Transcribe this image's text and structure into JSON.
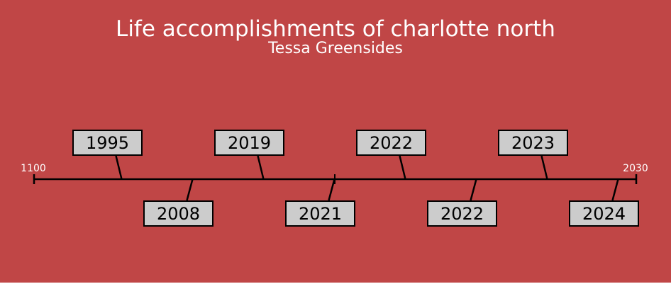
{
  "title": "Life accomplishments of charlotte north",
  "subtitle": "Tessa Greensides",
  "colors": {
    "background": "#c04646",
    "box_fill": "#cccccc",
    "line": "#000000",
    "text_light": "#ffffff"
  },
  "timeline": {
    "start_label": "1100",
    "end_label": "2030",
    "events": [
      {
        "label": "1995",
        "position": "above"
      },
      {
        "label": "2008",
        "position": "below"
      },
      {
        "label": "2019",
        "position": "above"
      },
      {
        "label": "2021",
        "position": "below"
      },
      {
        "label": "2022",
        "position": "above"
      },
      {
        "label": "2022",
        "position": "below"
      },
      {
        "label": "2023",
        "position": "above"
      },
      {
        "label": "2024",
        "position": "below"
      }
    ]
  }
}
